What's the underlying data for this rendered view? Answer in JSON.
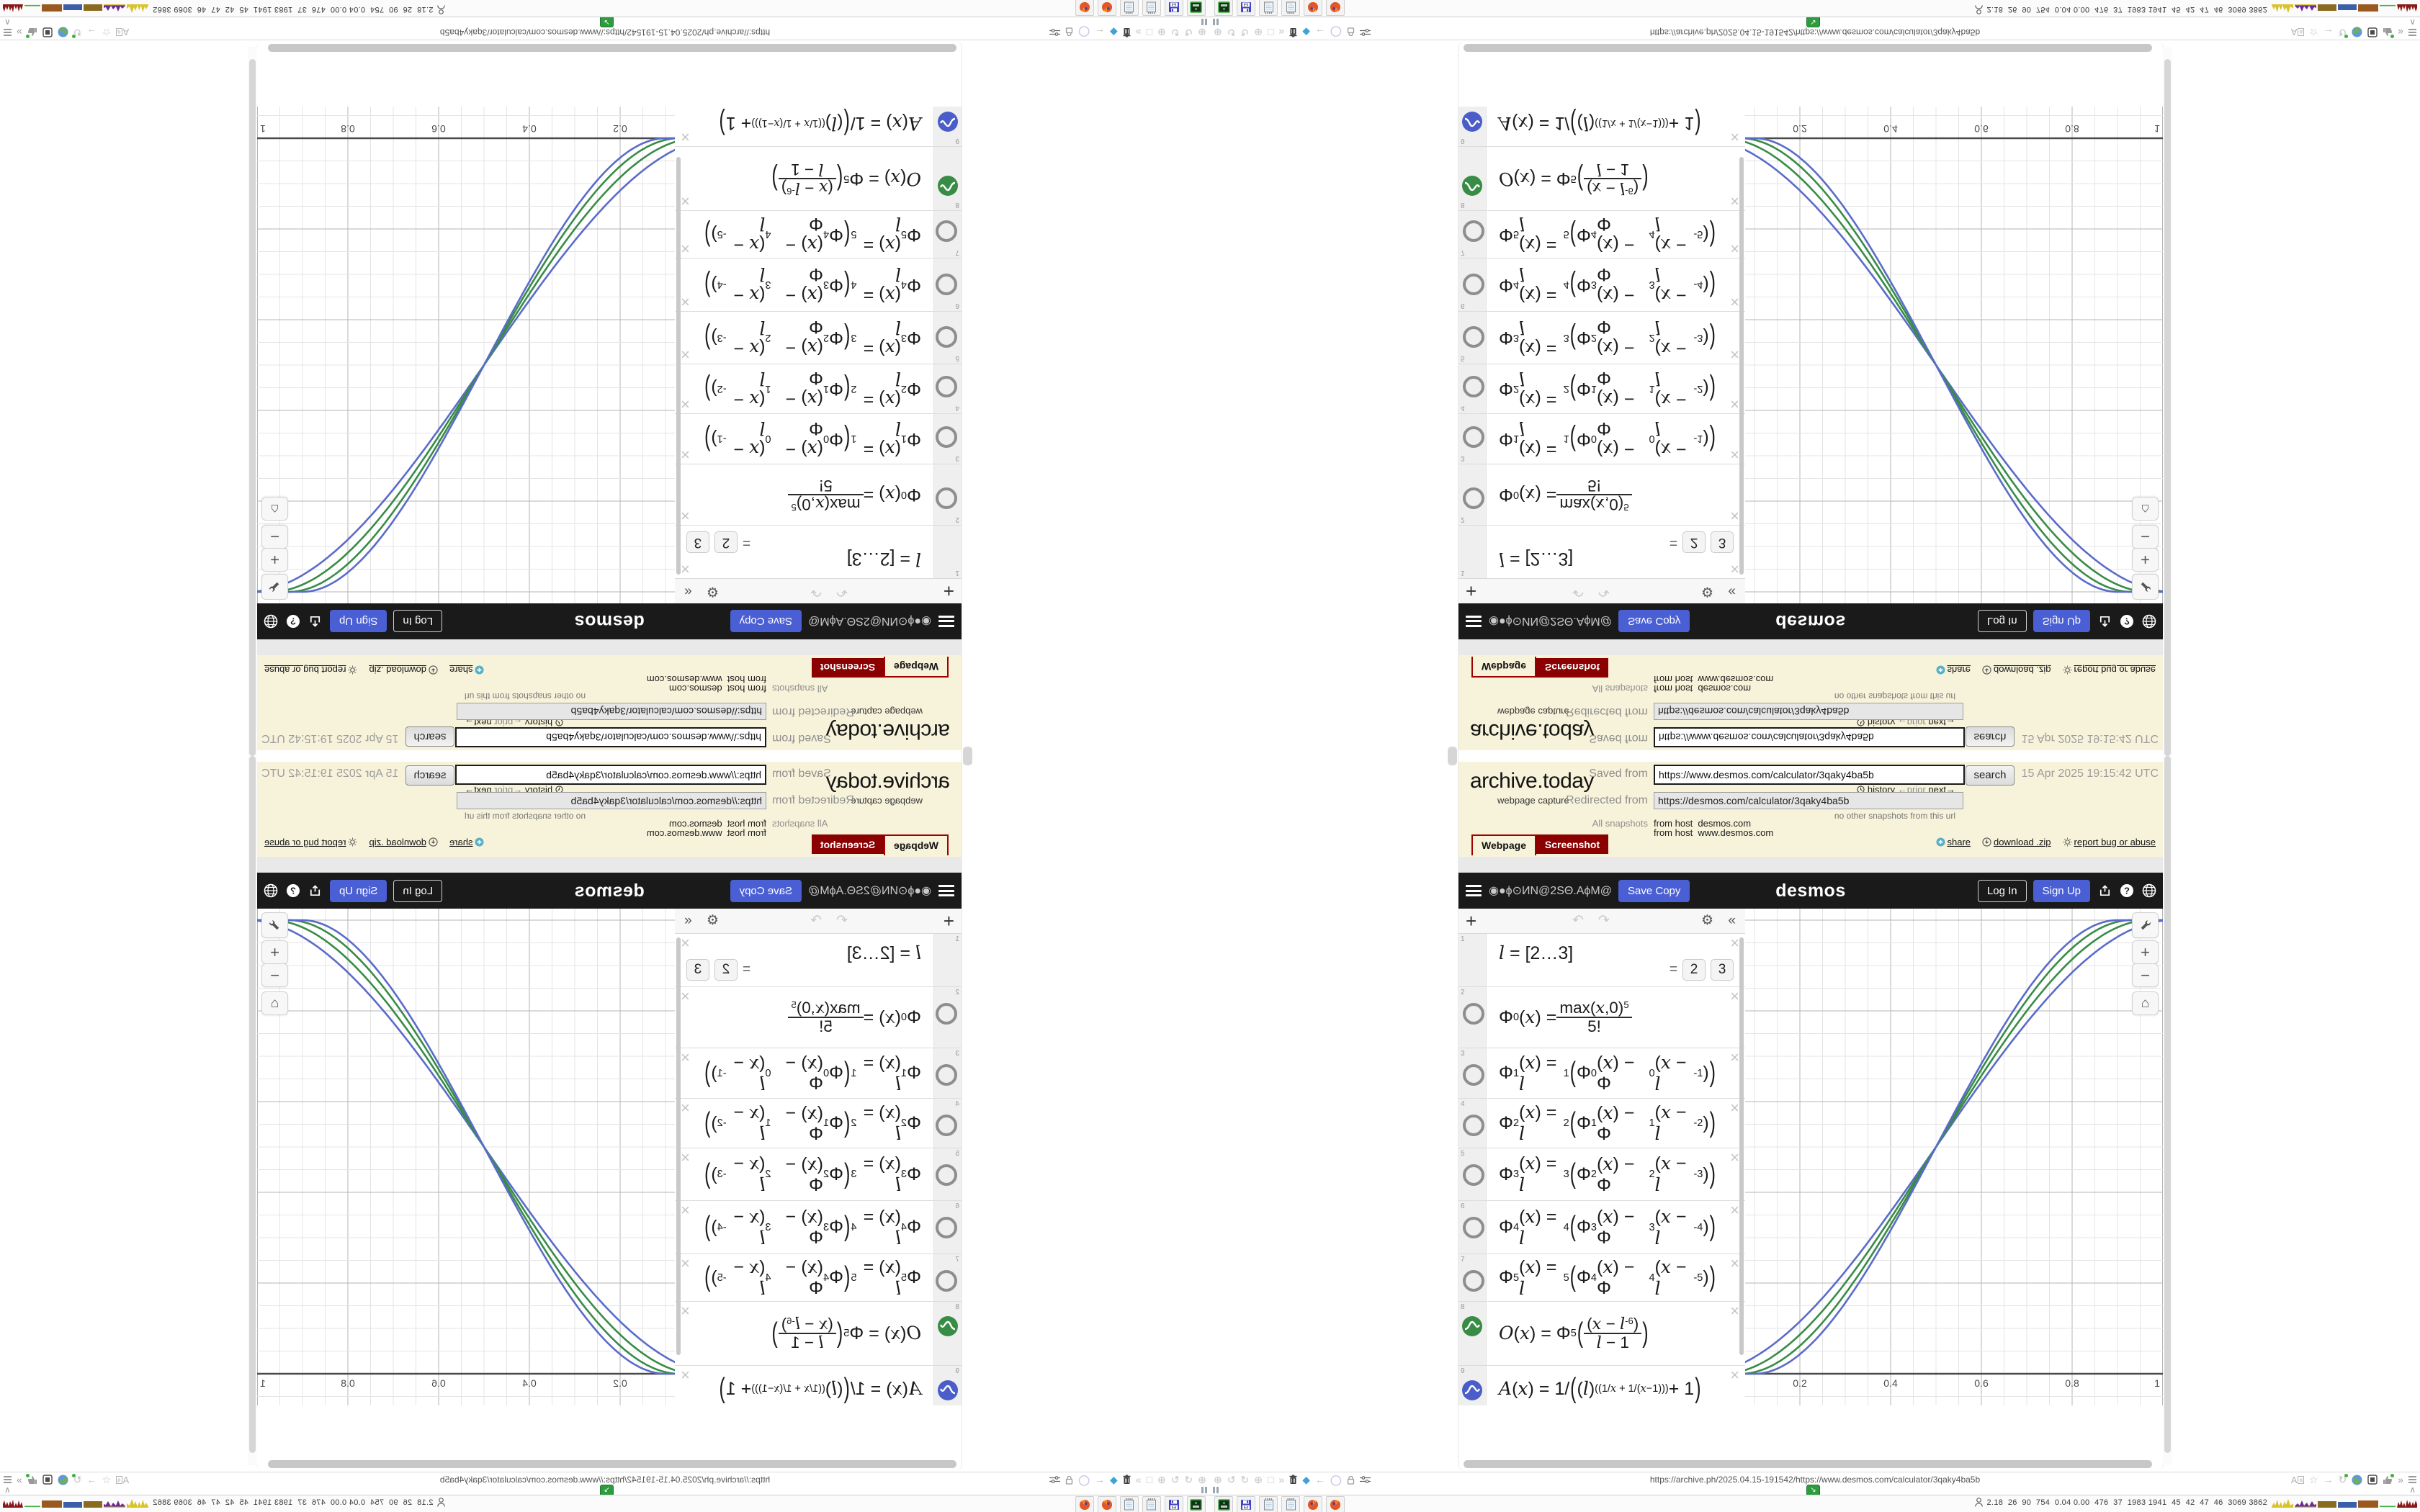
{
  "archive": {
    "logo": "archive.today",
    "tagline": "webpage capture",
    "saved_from_label": "Saved from",
    "saved_url": "https://www.desmos.com/calculator/3qaky4ba5b",
    "search_button": "search",
    "timestamp": "15 Apr 2025 19:15:42 UTC",
    "history_link": "history",
    "prior_link": "←prior",
    "next_link": "next→",
    "redirected_from_label": "Redirected from",
    "redirected_url": "https://desmos.com/calculator/3qaky4ba5b",
    "no_other": "no other snapshots from this url",
    "all_snapshots_label": "All snapshots",
    "host_line1": "from host  desmos.com",
    "host_line2": "from host  www.desmos.com",
    "tab_webpage": "Webpage",
    "tab_screenshot": "Screenshot",
    "share_link": "share",
    "download_link": "download .zip",
    "report_link": "report bug or abuse"
  },
  "desmos": {
    "title_scrambled": "◉●ϕ⊙ИN@2SΘ.AϕM@Ɔ…",
    "save_copy": "Save Copy",
    "logo": "desmos",
    "log_in": "Log In",
    "sign_up": "Sign Up",
    "toolbar": {
      "add": "+",
      "undo": "↶",
      "redo": "↷",
      "settings": "⚙",
      "collapse": "«"
    },
    "expressions": [
      {
        "index": "1",
        "icon": "none",
        "formula": "l = [2…3]",
        "result_eq": "=",
        "chips": [
          "2",
          "3"
        ]
      },
      {
        "index": "2",
        "icon": "circle",
        "formula": "Φ_{0}(x) = \\f{max(x,0)^{5}}{5!}"
      },
      {
        "index": "3",
        "icon": "circle",
        "formula": "Φ_{1}(x) = l^{1}\\p{Φ_{0}(x) − Φ_{0}(x − l^{-1})}"
      },
      {
        "index": "4",
        "icon": "circle",
        "formula": "Φ_{2}(x) = l^{2}\\p{Φ_{1}(x) − Φ_{1}(x − l^{-2})}"
      },
      {
        "index": "5",
        "icon": "circle",
        "formula": "Φ_{3}(x) = l^{3}\\p{Φ_{2}(x) − Φ_{2}(x − l^{-3})}"
      },
      {
        "index": "6",
        "icon": "circle",
        "formula": "Φ_{4}(x) = l^{4}\\p{Φ_{3}(x) − Φ_{3}(x − l^{-4})}"
      },
      {
        "index": "7",
        "icon": "circle",
        "formula": "Φ_{5}(x) = l^{5}\\p{Φ_{4}(x) − Φ_{4}(x − l^{-5})}"
      },
      {
        "index": "8",
        "icon": "green",
        "formula": "O(x) = Φ_{5}\\p{\\f{(x − l^{-6})}{l − 1}}"
      },
      {
        "index": "9",
        "icon": "blue",
        "formula": "A(x) = 1/\\p{(l)^{((1/x + 1/(x−1)))} + 1}"
      }
    ],
    "graph": {
      "xticks": [
        {
          "label": "0.2",
          "v": 0.2
        },
        {
          "label": "0.4",
          "v": 0.4
        },
        {
          "label": "0.6",
          "v": 0.6
        },
        {
          "label": "0.8",
          "v": 0.8
        },
        {
          "label": "1",
          "v": 1.0
        }
      ],
      "curves": [
        {
          "series": "A(x)",
          "color": "#5b6bc9",
          "a": -0.02,
          "b": 1.02
        },
        {
          "series": "O(x)",
          "color": "#388c46",
          "a": 0.03,
          "b": 0.97
        },
        {
          "series": "O(x)",
          "color": "#388c46",
          "a": 0.07,
          "b": 0.93
        },
        {
          "series": "A(x)",
          "color": "#5b6bc9",
          "a": 0.1,
          "b": 0.9
        }
      ],
      "colors": {
        "green": "#388c46",
        "blue": "#4a5dc8"
      }
    }
  },
  "browser": {
    "url": "https://archive.ph/2025.04.15-191542/https://www.desmos.com/calculator/3qaky4ba5b"
  },
  "taskbar": {
    "stats": "2.18  26  90  754  0.04 0.00  476  37  1983 1941  45  42  47  46  3069 3862"
  }
}
